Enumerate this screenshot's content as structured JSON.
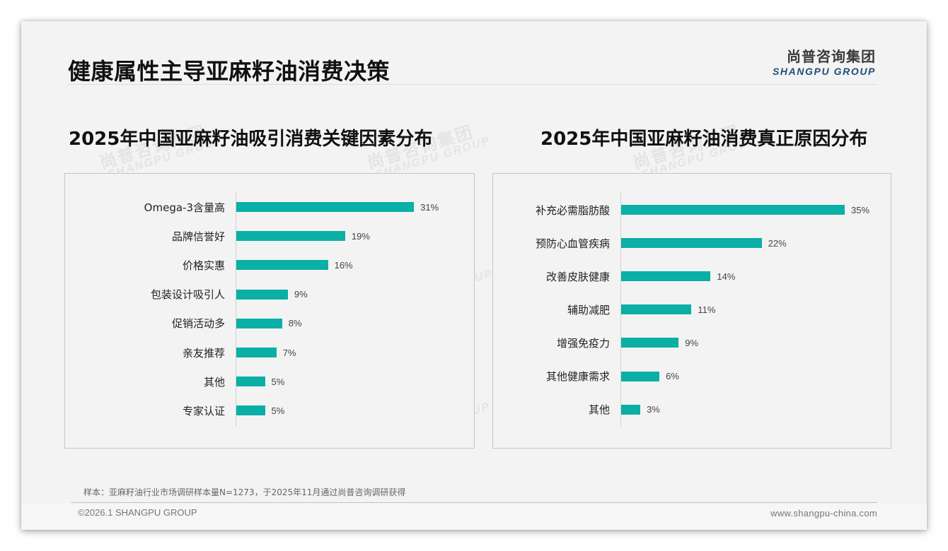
{
  "page": {
    "title": "健康属性主导亚麻籽油消费决策",
    "logo": {
      "cn": "尚普咨询集团",
      "en": "SHANGPU GROUP"
    },
    "watermark": {
      "cn": "尚普咨询集团",
      "en": "SHANGPU GROUP"
    },
    "footnote": "样本：亚麻籽油行业市场调研样本量N=1273，于2025年11月通过尚普咨询调研获得",
    "copyright": "©2026.1 SHANGPU GROUP",
    "website": "www.shangpu-china.com"
  },
  "colors": {
    "bar": "#0aafa6",
    "panel_border": "#b9c6d4",
    "logo_en": "#1f4e79",
    "background": "#f3f3f3"
  },
  "chart_data": [
    {
      "type": "bar",
      "orientation": "horizontal",
      "title": "2025年中国亚麻籽油吸引消费关键因素分布",
      "categories": [
        "Omega-3含量高",
        "品牌信誉好",
        "价格实惠",
        "包装设计吸引人",
        "促销活动多",
        "亲友推荐",
        "其他",
        "专家认证"
      ],
      "values": [
        31,
        19,
        16,
        9,
        8,
        7,
        5,
        5
      ],
      "value_labels": [
        "31%",
        "19%",
        "16%",
        "9%",
        "8%",
        "7%",
        "5%",
        "5%"
      ],
      "unit": "%",
      "xlabel": "",
      "ylabel": "",
      "grid": false,
      "legend": null
    },
    {
      "type": "bar",
      "orientation": "horizontal",
      "title": "2025年中国亚麻籽油消费真正原因分布",
      "categories": [
        "补充必需脂肪酸",
        "预防心血管疾病",
        "改善皮肤健康",
        "辅助减肥",
        "增强免疫力",
        "其他健康需求",
        "其他"
      ],
      "values": [
        35,
        22,
        14,
        11,
        9,
        6,
        3
      ],
      "value_labels": [
        "35%",
        "22%",
        "14%",
        "11%",
        "9%",
        "6%",
        "3%"
      ],
      "unit": "%",
      "xlabel": "",
      "ylabel": "",
      "grid": false,
      "legend": null
    }
  ]
}
